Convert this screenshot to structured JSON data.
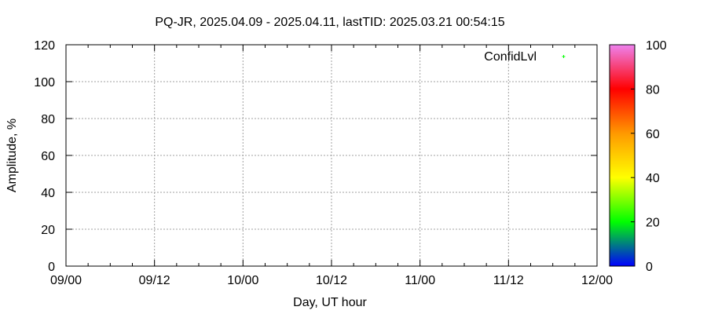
{
  "chart_data": {
    "type": "scatter",
    "title": "PQ-JR, 2025.04.09 - 2025.04.11, lastTID: 2025.03.21 00:54:15",
    "xlabel": "Day, UT hour",
    "ylabel": "Amplitude, %",
    "xticks": [
      "09/00",
      "09/12",
      "10/00",
      "10/12",
      "11/00",
      "11/12",
      "12/00"
    ],
    "x_minor_ticks_per_major": 4,
    "yticks": [
      0,
      20,
      40,
      60,
      80,
      100,
      120
    ],
    "ylim": [
      0,
      120
    ],
    "grid": true,
    "legend": {
      "position": "top-right",
      "entries": [
        {
          "name": "ConfidLvl",
          "color": "#00ff00",
          "marker": "+"
        }
      ]
    },
    "series": [
      {
        "name": "ConfidLvl",
        "points": []
      }
    ],
    "colorbar": {
      "range": [
        0,
        100
      ],
      "ticks": [
        0,
        20,
        40,
        60,
        80,
        100
      ],
      "colors": [
        "#0000ff",
        "#00ff00",
        "#ffff00",
        "#ff9900",
        "#ff0000",
        "#ee82ee"
      ]
    }
  }
}
